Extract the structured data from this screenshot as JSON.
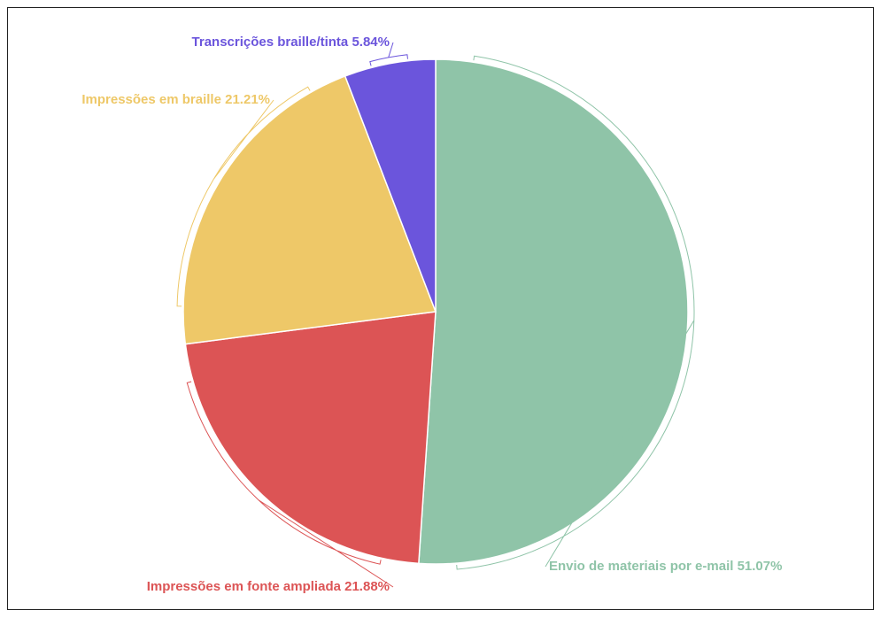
{
  "chart_data": {
    "type": "pie",
    "categories": [
      "Envio de materiais por e-mail",
      "Impressões em fonte ampliada",
      "Impressões em braille",
      "Transcrições braille/tinta"
    ],
    "values": [
      51.07,
      21.88,
      21.21,
      5.84
    ],
    "value_labels": [
      "51.07%",
      "21.88%",
      "21.21%",
      "5.84%"
    ],
    "colors": [
      "#8fc4a8",
      "#dc5455",
      "#eec868",
      "#6b55dc"
    ]
  }
}
